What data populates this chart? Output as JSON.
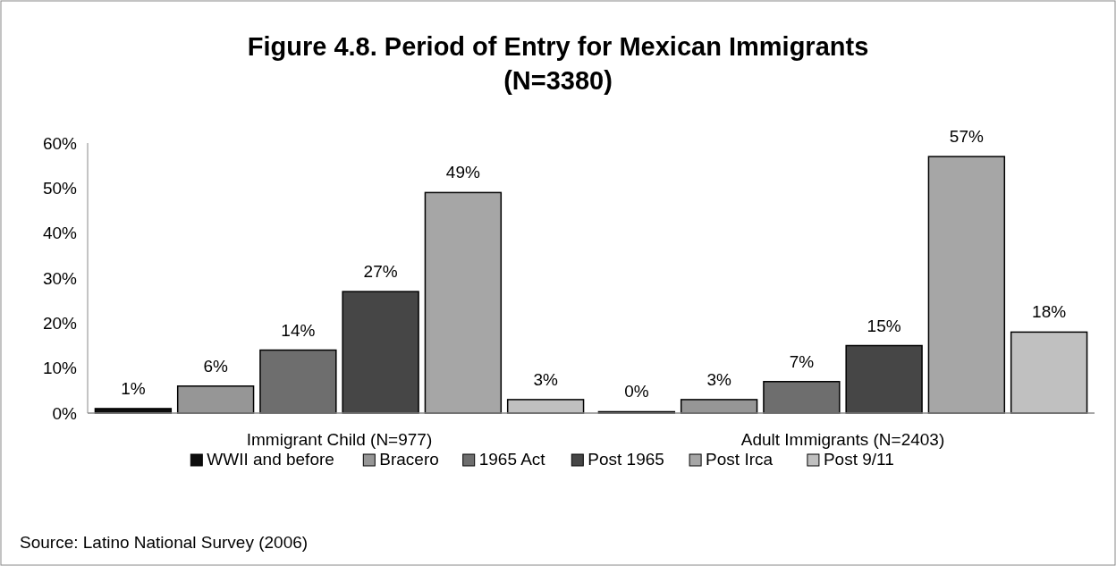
{
  "chart_data": {
    "type": "bar",
    "title": "Figure 4.8. Period of Entry for Mexican Immigrants\n(N=3380)",
    "categories": [
      "Immigrant Child (N=977)",
      "Adult Immigrants (N=2403)"
    ],
    "series": [
      {
        "name": "WWII and before",
        "color": "#0d0d0d",
        "values": [
          1,
          0.3
        ],
        "value_labels": [
          "1%",
          "0%"
        ]
      },
      {
        "name": "Bracero",
        "color": "#969696",
        "values": [
          6,
          3
        ],
        "value_labels": [
          "6%",
          "3%"
        ]
      },
      {
        "name": "1965 Act",
        "color": "#6e6e6e",
        "values": [
          14,
          7
        ],
        "value_labels": [
          "14%",
          "7%"
        ]
      },
      {
        "name": "Post 1965",
        "color": "#464646",
        "values": [
          27,
          15
        ],
        "value_labels": [
          "27%",
          "15%"
        ]
      },
      {
        "name": "Post Irca",
        "color": "#a6a6a6",
        "values": [
          49,
          57
        ],
        "value_labels": [
          "49%",
          "57%"
        ]
      },
      {
        "name": "Post 9/11",
        "color": "#c0c0c0",
        "values": [
          3,
          18
        ],
        "value_labels": [
          "3%",
          "18%"
        ]
      }
    ],
    "ylim": [
      0,
      60
    ],
    "yticks": [
      {
        "value": 0,
        "label": "0%"
      },
      {
        "value": 10,
        "label": "10%"
      },
      {
        "value": 20,
        "label": "20%"
      },
      {
        "value": 30,
        "label": "30%"
      },
      {
        "value": 40,
        "label": "40%"
      },
      {
        "value": 50,
        "label": "50%"
      },
      {
        "value": 60,
        "label": "60%"
      }
    ],
    "legend": "bottom",
    "annotations": [
      "Source: Latino National Survey (2006)"
    ]
  }
}
